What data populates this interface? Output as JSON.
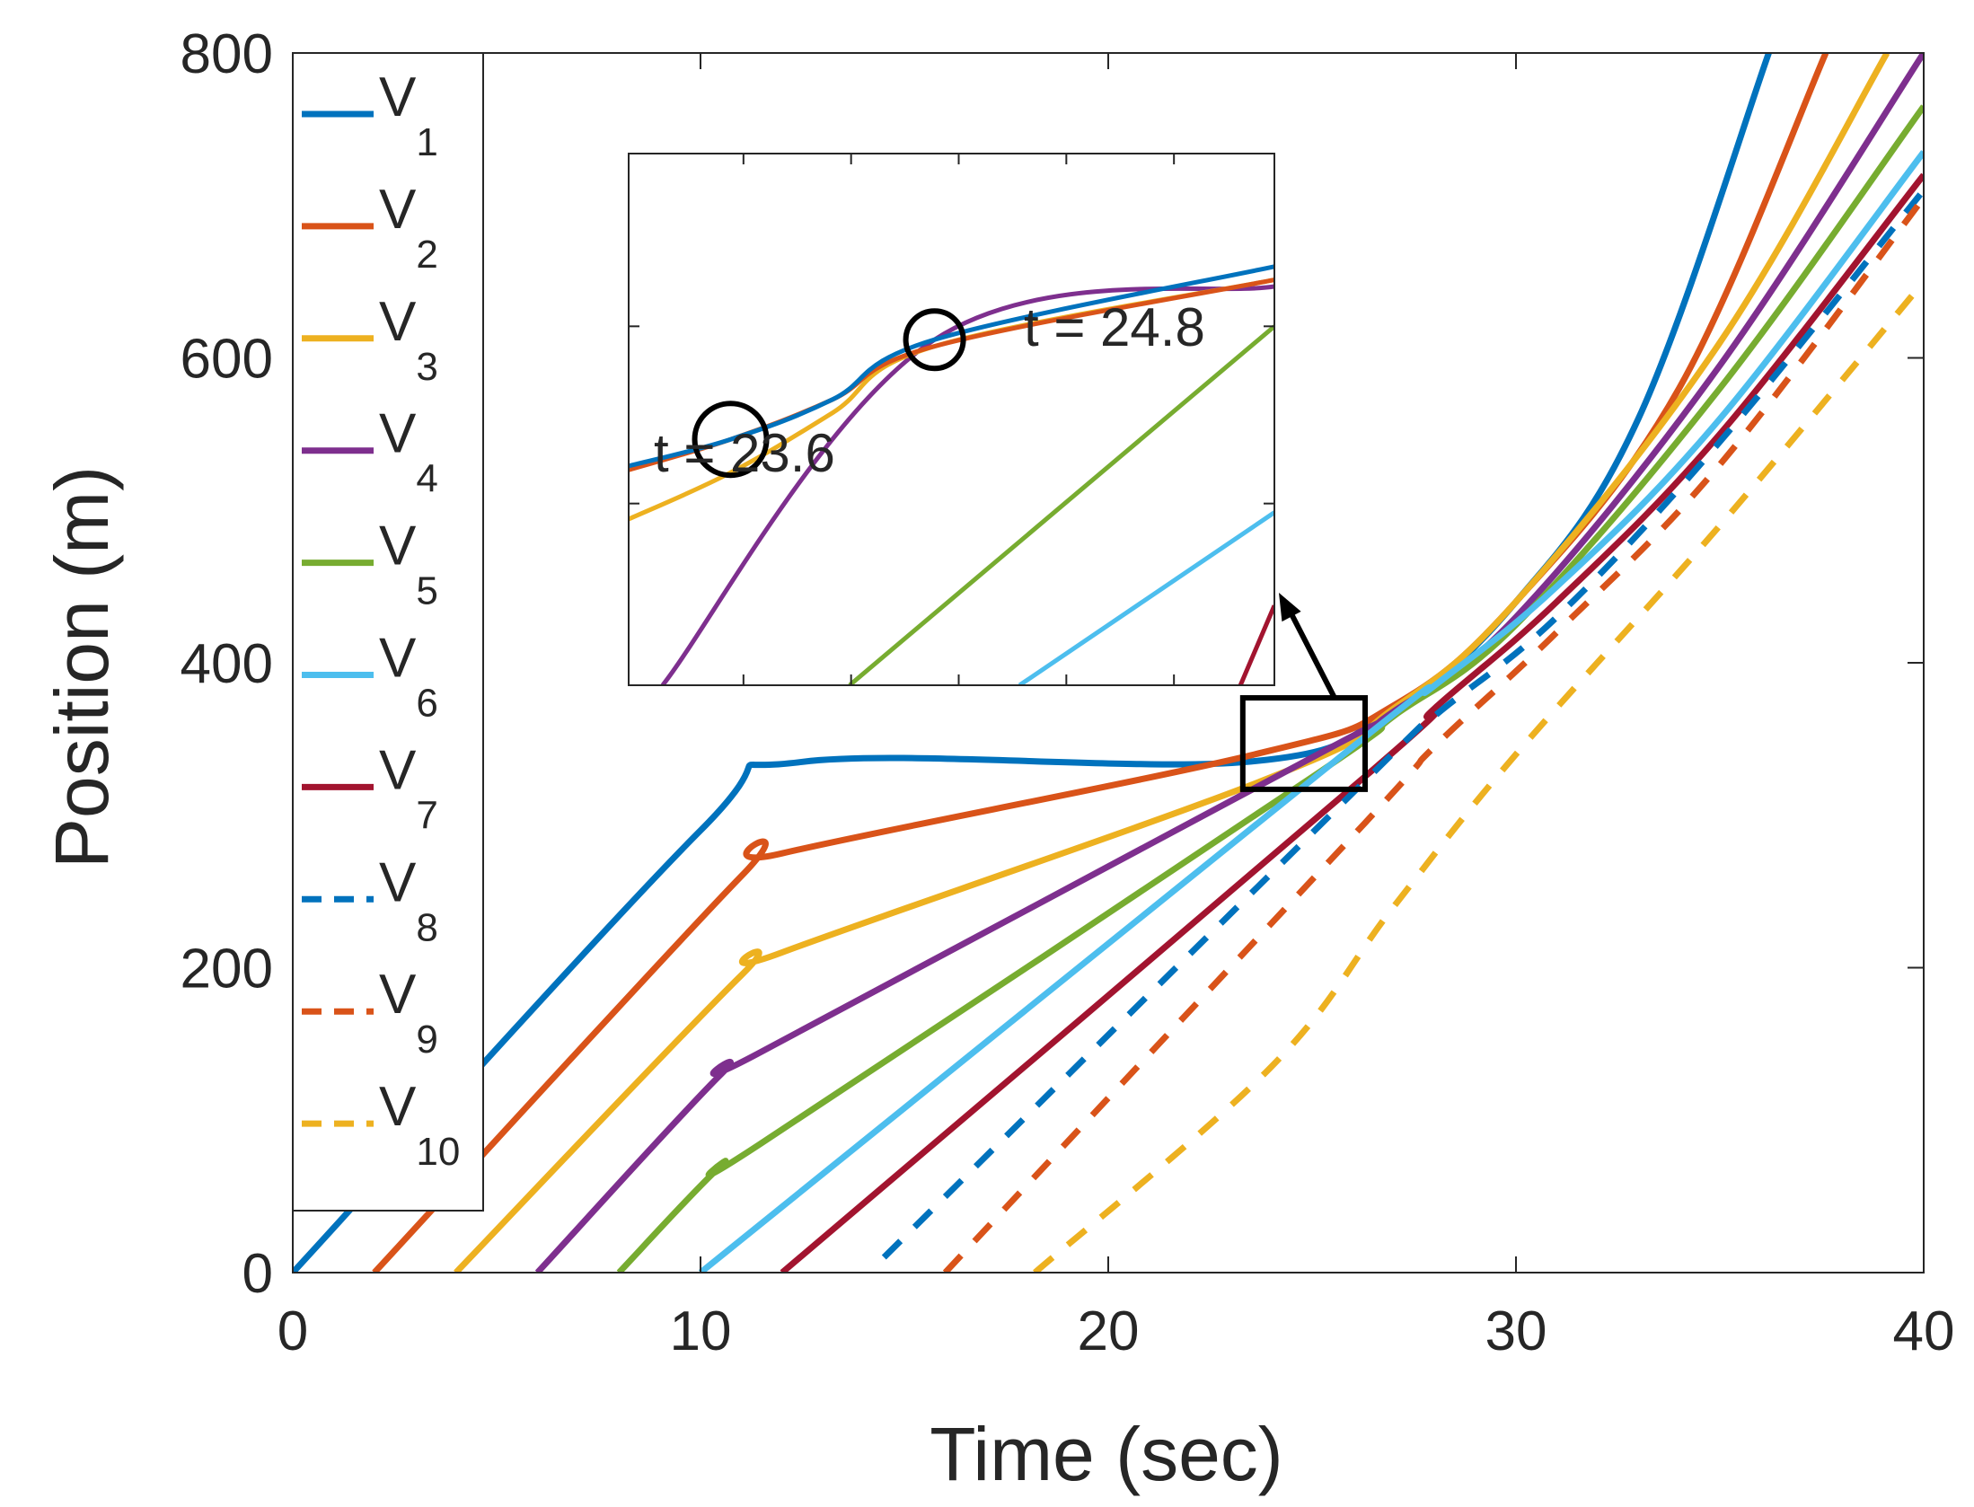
{
  "chart_data": {
    "type": "line",
    "title": "",
    "xlabel": "Time (sec)",
    "ylabel": "Position (m)",
    "xlim": [
      0,
      40
    ],
    "ylim": [
      0,
      800
    ],
    "xticks": [
      "0",
      "10",
      "20",
      "30",
      "40"
    ],
    "yticks": [
      "0",
      "200",
      "400",
      "600",
      "800"
    ],
    "grid": false,
    "legend_position": "left",
    "series": [
      {
        "name": "V",
        "sub": "1",
        "color": "#0072BD",
        "style": "solid",
        "t_start": 0,
        "x": [
          0,
          10,
          12.5,
          23.4,
          27,
          30,
          33,
          36.2
        ],
        "y": [
          0,
          290,
          335,
          335,
          370,
          440,
          560,
          800
        ]
      },
      {
        "name": "V",
        "sub": "2",
        "color": "#D95319",
        "style": "solid",
        "t_start": 2,
        "x": [
          2,
          11,
          12,
          23.6,
          27,
          30,
          34,
          37.6
        ],
        "y": [
          0,
          260,
          275,
          340,
          372,
          440,
          580,
          800
        ]
      },
      {
        "name": "V",
        "sub": "3",
        "color": "#EDB120",
        "style": "solid",
        "t_start": 4,
        "x": [
          4,
          11,
          12,
          24,
          27,
          30,
          35,
          39.1
        ],
        "y": [
          0,
          195,
          210,
          325,
          370,
          440,
          610,
          800
        ]
      },
      {
        "name": "V",
        "sub": "4",
        "color": "#7E2F8E",
        "style": "solid",
        "t_start": 6,
        "x": [
          6,
          10.5,
          11.5,
          24.8,
          27,
          30,
          35,
          40
        ],
        "y": [
          0,
          130,
          145,
          335,
          368,
          430,
          595,
          800
        ]
      },
      {
        "name": "V",
        "sub": "5",
        "color": "#77AC30",
        "style": "solid",
        "t_start": 8,
        "x": [
          8,
          10.5,
          11.5,
          25,
          27,
          30,
          35,
          40
        ],
        "y": [
          0,
          70,
          85,
          325,
          365,
          425,
          580,
          765
        ]
      },
      {
        "name": "V",
        "sub": "6",
        "color": "#4DBEEE",
        "style": "solid",
        "t_start": 10,
        "x": [
          10,
          26,
          28,
          31,
          35,
          40
        ],
        "y": [
          0,
          345,
          385,
          450,
          560,
          735
        ]
      },
      {
        "name": "V",
        "sub": "7",
        "color": "#A2142F",
        "style": "solid",
        "t_start": 12,
        "x": [
          12,
          26.5,
          28,
          31,
          35,
          40
        ],
        "y": [
          0,
          330,
          370,
          440,
          550,
          720
        ]
      },
      {
        "name": "V",
        "sub": "8",
        "color": "#0072BD",
        "style": "dashed",
        "t_start": 14.5,
        "x": [
          14.5,
          26.2,
          28,
          31,
          35,
          40
        ],
        "y": [
          10,
          320,
          365,
          430,
          545,
          710
        ]
      },
      {
        "name": "V",
        "sub": "9",
        "color": "#D95319",
        "style": "dashed",
        "t_start": 16,
        "x": [
          16,
          26.3,
          28,
          31,
          35,
          40
        ],
        "y": [
          0,
          295,
          345,
          420,
          530,
          705
        ]
      },
      {
        "name": "V",
        "sub": "10",
        "color": "#EDB120",
        "style": "dashed",
        "t_start": 18,
        "x": [
          18.2,
          24,
          27,
          30,
          35,
          40
        ],
        "y": [
          0,
          135,
          240,
          340,
          490,
          650
        ]
      }
    ],
    "zoom_region": {
      "xlim": [
        23.3,
        26.3
      ],
      "ylim": [
        317,
        377
      ]
    },
    "inset": {
      "xlim": [
        23.0,
        26.8
      ],
      "ylim": [
        318,
        358
      ],
      "series": [
        {
          "ref": "1",
          "x": [
            23.0,
            23.6,
            24.2,
            24.8,
            26.8
          ],
          "y": [
            334.5,
            336.5,
            339.5,
            344,
            349.5
          ]
        },
        {
          "ref": "2",
          "x": [
            23.0,
            23.6,
            24.2,
            24.8,
            26.8
          ],
          "y": [
            334.2,
            336.5,
            339.5,
            343.5,
            348.5
          ]
        },
        {
          "ref": "3",
          "x": [
            23.0,
            23.6,
            24.2,
            24.8,
            26.8
          ],
          "y": [
            330.5,
            334,
            338.5,
            343.5,
            348.5
          ]
        },
        {
          "ref": "4",
          "x": [
            23.2,
            24.8,
            26.8
          ],
          "y": [
            318,
            344,
            348
          ]
        },
        {
          "ref": "5",
          "x": [
            24.3,
            26.8
          ],
          "y": [
            318,
            345
          ]
        },
        {
          "ref": "6",
          "x": [
            25.3,
            26.8
          ],
          "y": [
            318,
            331
          ]
        },
        {
          "ref": "7",
          "x": [
            26.6,
            26.8
          ],
          "y": [
            318,
            324
          ]
        }
      ]
    },
    "annotations": [
      {
        "text": "t = 23.6",
        "x": 23.6,
        "y": 336.5
      },
      {
        "text": "t = 24.8",
        "x": 24.8,
        "y": 344
      }
    ]
  }
}
